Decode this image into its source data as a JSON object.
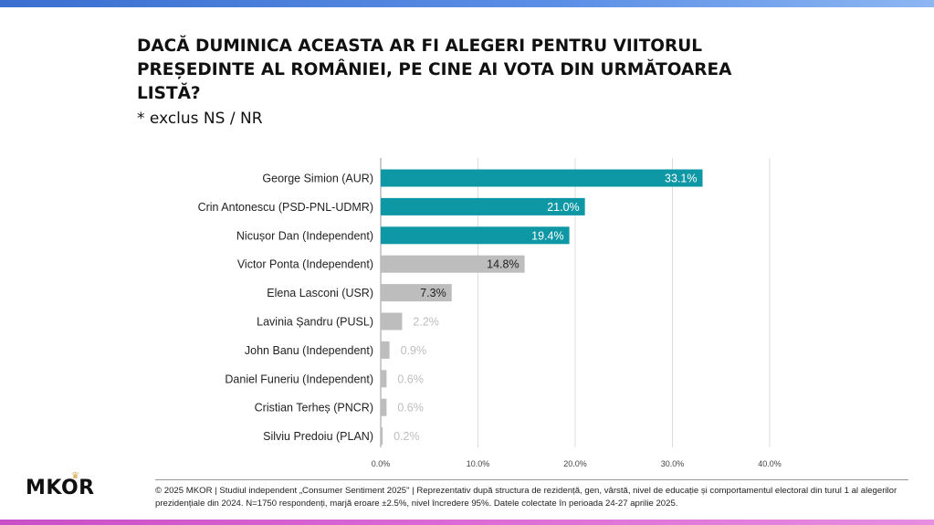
{
  "title": "DACĂ DUMINICA ACEASTA AR FI ALEGERI PENTRU VIITORUL PREȘEDINTE AL ROMÂNIEI, PE CINE AI VOTA DIN URMĂTOAREA LISTĂ?",
  "subtitle": "* exclus NS / NR",
  "brand": "MKOR",
  "footnote": "© 2025 MKOR | Studiul independent „Consumer Sentiment 2025\" | Reprezentativ după structura de rezidență, gen, vârstă, nivel de educație și comportamentul electoral din turul 1 al alegerilor prezidențiale din 2024. N=1750 respondenți, marjă eroare ±2.5%, nivel încredere 95%. Datele colectate în perioada 24-27 aprilie 2025.",
  "colors": {
    "teal": "#0e97a5",
    "gray": "#bdbdbd",
    "grid": "#dcdcdc",
    "dark_label": "#222222",
    "light_label": "#bdbdbd"
  },
  "chart_data": {
    "type": "bar",
    "orientation": "horizontal",
    "title": "DACĂ DUMINICA ACEASTA AR FI ALEGERI PENTRU VIITORUL PREȘEDINTE AL ROMÂNIEI, PE CINE AI VOTA DIN URMĂTOAREA LISTĂ?",
    "xlabel": "",
    "ylabel": "",
    "xlim": [
      0,
      40
    ],
    "grid": true,
    "ticks": [
      "0.0%",
      "10.0%",
      "20.0%",
      "30.0%",
      "40.0%"
    ],
    "tick_values": [
      0,
      10,
      20,
      30,
      40
    ],
    "categories": [
      "George Simion (AUR)",
      "Crin Antonescu (PSD-PNL-UDMR)",
      "Nicușor Dan (Independent)",
      "Victor Ponta (Independent)",
      "Elena Lasconi (USR)",
      "Lavinia Șandru (PUSL)",
      "John Banu (Independent)",
      "Daniel Funeriu (Independent)",
      "Cristian Terheș (PNCR)",
      "Silviu Predoiu (PLAN)"
    ],
    "values": [
      33.1,
      21.0,
      19.4,
      14.8,
      7.3,
      2.2,
      0.9,
      0.6,
      0.6,
      0.2
    ],
    "labels": [
      "33.1%",
      "21.0%",
      "19.4%",
      "14.8%",
      "7.3%",
      "2.2%",
      "0.9%",
      "0.6%",
      "0.6%",
      "0.2%"
    ],
    "bar_colors": [
      "teal",
      "teal",
      "teal",
      "gray",
      "gray",
      "gray",
      "gray",
      "gray",
      "gray",
      "gray"
    ]
  }
}
